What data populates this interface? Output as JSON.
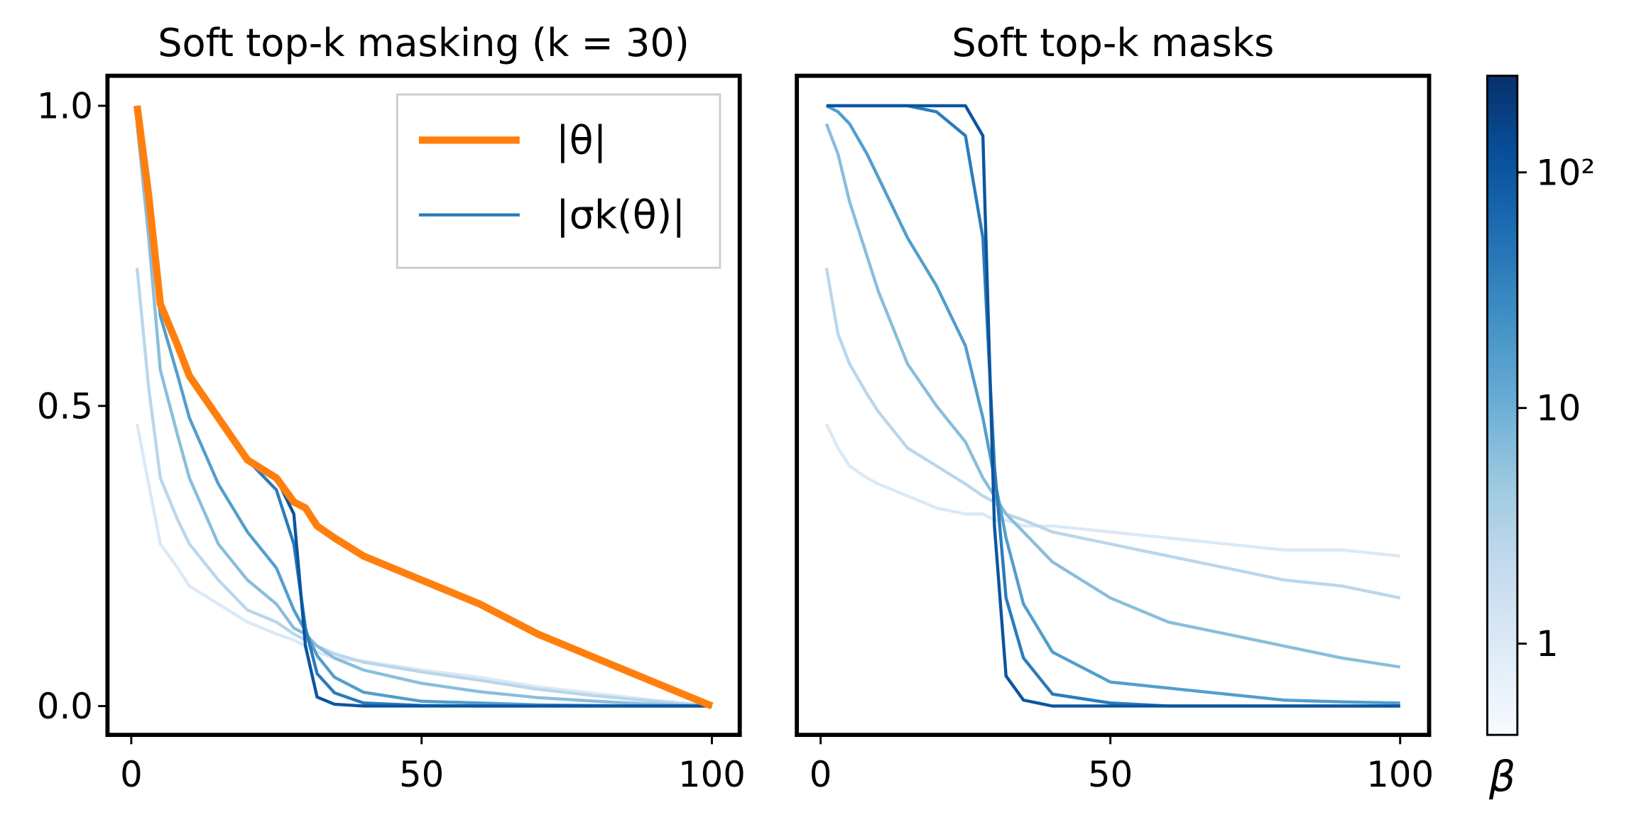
{
  "chart_data": [
    {
      "type": "line",
      "title": "Soft top-k masking (k = 30)",
      "x": [
        1,
        3,
        5,
        8,
        10,
        15,
        20,
        25,
        28,
        30,
        32,
        35,
        40,
        50,
        60,
        70,
        80,
        90,
        100
      ],
      "series": [
        {
          "color": "#dbe9f6",
          "values": [
            0.47,
            0.37,
            0.27,
            0.23,
            0.2,
            0.17,
            0.14,
            0.12,
            0.11,
            0.1,
            0.09,
            0.08,
            0.075,
            0.06,
            0.048,
            0.032,
            0.021,
            0.01,
            0
          ]
        },
        {
          "color": "#bad6eb",
          "values": [
            0.73,
            0.53,
            0.38,
            0.31,
            0.27,
            0.21,
            0.16,
            0.14,
            0.12,
            0.11,
            0.1,
            0.087,
            0.073,
            0.057,
            0.043,
            0.028,
            0.017,
            0.008,
            0
          ]
        },
        {
          "color": "#89bedc",
          "values": [
            0.97,
            0.78,
            0.56,
            0.45,
            0.38,
            0.27,
            0.21,
            0.17,
            0.13,
            0.12,
            0.1,
            0.08,
            0.06,
            0.038,
            0.024,
            0.014,
            0.008,
            0.003,
            0
          ]
        },
        {
          "color": "#539ecd",
          "values": [
            1.0,
            0.84,
            0.65,
            0.55,
            0.48,
            0.37,
            0.29,
            0.23,
            0.16,
            0.125,
            0.084,
            0.048,
            0.023,
            0.008,
            0.005,
            0.002,
            0.001,
            0,
            0
          ]
        },
        {
          "name": "|σk(θ)|",
          "color": "#2b7bba",
          "values": [
            1.0,
            0.85,
            0.67,
            0.6,
            0.55,
            0.48,
            0.41,
            0.36,
            0.27,
            0.13,
            0.054,
            0.022,
            0.005,
            0.001,
            0,
            0,
            0,
            0,
            0
          ]
        },
        {
          "color": "#0b559f",
          "values": [
            1.0,
            0.85,
            0.67,
            0.6,
            0.55,
            0.48,
            0.41,
            0.38,
            0.32,
            0.1,
            0.015,
            0.003,
            0,
            0,
            0,
            0,
            0,
            0,
            0
          ]
        },
        {
          "name": "|θ|",
          "color": "#ff7f0e",
          "values": [
            1.0,
            0.85,
            0.67,
            0.6,
            0.55,
            0.48,
            0.41,
            0.38,
            0.34,
            0.33,
            0.3,
            0.28,
            0.25,
            0.21,
            0.17,
            0.12,
            0.08,
            0.04,
            0.0
          ]
        }
      ],
      "xlim": [
        -4.1,
        104.8
      ],
      "ylim": [
        -0.048,
        1.05
      ],
      "xticks": [
        0,
        50,
        100
      ],
      "yticks": [
        {
          "value": 0,
          "label": "0.0"
        },
        0.5,
        {
          "value": 1,
          "label": "1.0"
        }
      ],
      "legend": "upper right"
    },
    {
      "type": "line",
      "title": "Soft top-k masks",
      "x": [
        1,
        3,
        5,
        8,
        10,
        15,
        20,
        25,
        28,
        30,
        32,
        35,
        40,
        50,
        60,
        70,
        80,
        90,
        100
      ],
      "series": [
        {
          "color": "#dbe9f6",
          "values": [
            0.47,
            0.43,
            0.4,
            0.38,
            0.37,
            0.35,
            0.33,
            0.32,
            0.32,
            0.31,
            0.31,
            0.3,
            0.3,
            0.29,
            0.28,
            0.27,
            0.26,
            0.26,
            0.25
          ]
        },
        {
          "color": "#bad6eb",
          "values": [
            0.73,
            0.62,
            0.57,
            0.52,
            0.49,
            0.43,
            0.4,
            0.37,
            0.35,
            0.34,
            0.32,
            0.31,
            0.29,
            0.27,
            0.25,
            0.23,
            0.21,
            0.2,
            0.18
          ]
        },
        {
          "color": "#89bedc",
          "values": [
            0.97,
            0.92,
            0.84,
            0.75,
            0.69,
            0.57,
            0.5,
            0.44,
            0.38,
            0.35,
            0.32,
            0.29,
            0.24,
            0.18,
            0.14,
            0.12,
            0.1,
            0.08,
            0.065
          ]
        },
        {
          "color": "#539ecd",
          "values": [
            1.0,
            0.99,
            0.97,
            0.92,
            0.88,
            0.78,
            0.7,
            0.6,
            0.48,
            0.38,
            0.28,
            0.17,
            0.09,
            0.04,
            0.03,
            0.02,
            0.01,
            0.007,
            0.005
          ]
        },
        {
          "color": "#2b7bba",
          "values": [
            1.0,
            1.0,
            1.0,
            1.0,
            1.0,
            1.0,
            0.99,
            0.95,
            0.78,
            0.4,
            0.18,
            0.08,
            0.02,
            0.005,
            0,
            0,
            0,
            0,
            0
          ]
        },
        {
          "color": "#0b559f",
          "values": [
            1.0,
            1.0,
            1.0,
            1.0,
            1.0,
            1.0,
            1.0,
            1.0,
            0.95,
            0.3,
            0.05,
            0.01,
            0,
            0,
            0,
            0,
            0,
            0,
            0
          ]
        }
      ],
      "xlim": [
        -4.1,
        105
      ],
      "ylim": [
        -0.048,
        1.05
      ],
      "xticks": [
        0,
        50,
        100
      ]
    },
    {
      "type": "colorbar",
      "label": "β",
      "log_scale": true,
      "colormap": [
        "#f7fbff",
        "#deebf7",
        "#c6dbef",
        "#9ecae1",
        "#6baed6",
        "#4292c6",
        "#2171b5",
        "#08519c",
        "#08306b"
      ],
      "ylim": [
        0.41,
        257
      ],
      "yticks": [
        1,
        10,
        {
          "value": 100,
          "label": "10²"
        }
      ]
    }
  ]
}
